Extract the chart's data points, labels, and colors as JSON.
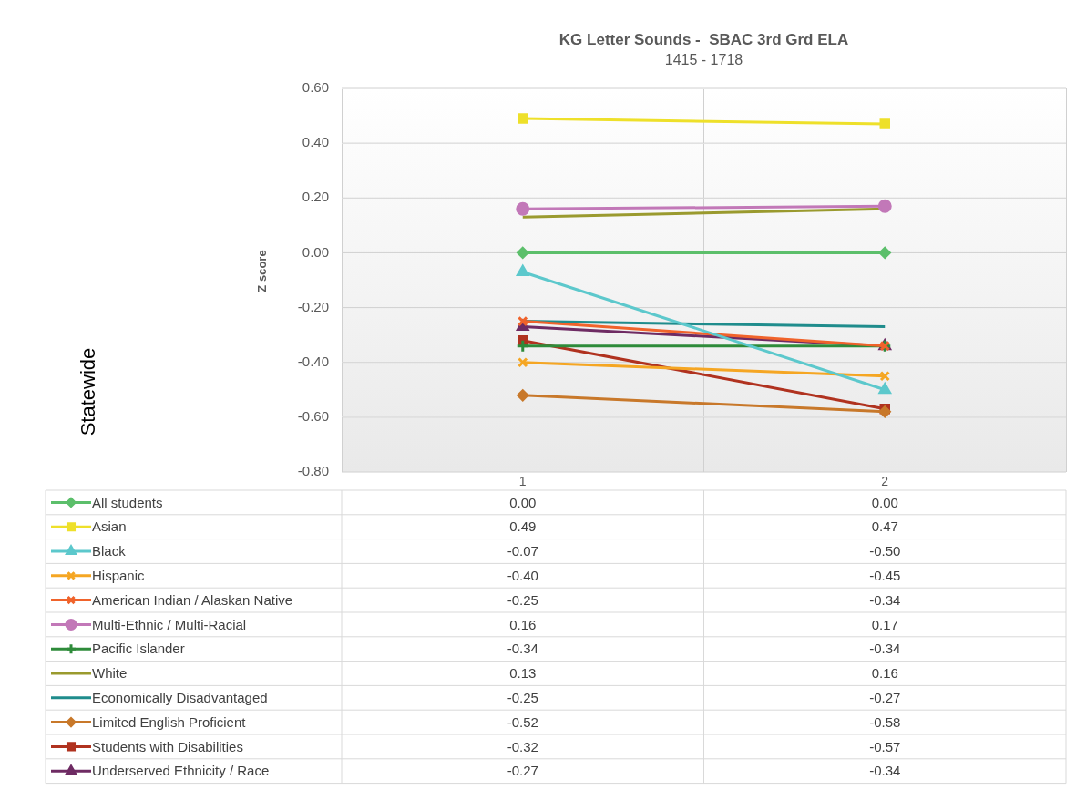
{
  "chart_data": {
    "type": "line",
    "title": "KG Letter Sounds -  SBAC 3rd Grd ELA",
    "subtitle": "1415 - 1718",
    "ylabel": "Z score",
    "annotations": [
      "Statewide"
    ],
    "categories": [
      "1",
      "2"
    ],
    "ylim": [
      -0.8,
      0.6
    ],
    "yticks": [
      {
        "value": -0.8,
        "label": "-0.80"
      },
      {
        "value": -0.6,
        "label": "-0.60"
      },
      {
        "value": -0.4,
        "label": "-0.40"
      },
      {
        "value": -0.2,
        "label": "-0.20"
      },
      {
        "value": 0,
        "label": "0.00"
      },
      {
        "value": 0.2,
        "label": "0.20"
      },
      {
        "value": 0.4,
        "label": "0.40"
      },
      {
        "value": 0.6,
        "label": "0.60"
      }
    ],
    "grid": true,
    "legend": "bottom",
    "series": [
      {
        "name": "All students",
        "color": "#5cbf6b",
        "marker": "diamond",
        "values": [
          0,
          0
        ],
        "value_labels": [
          "0.00",
          "0.00"
        ]
      },
      {
        "name": "Asian",
        "color": "#eee02a",
        "marker": "square",
        "values": [
          0.49,
          0.47
        ],
        "value_labels": [
          "0.49",
          "0.47"
        ]
      },
      {
        "name": "Black",
        "color": "#5cc8cc",
        "marker": "triangle",
        "values": [
          -0.07,
          -0.5
        ],
        "value_labels": [
          "-0.07",
          "-0.50"
        ]
      },
      {
        "name": "Hispanic",
        "color": "#f5a623",
        "marker": "cross",
        "values": [
          -0.4,
          -0.45
        ],
        "value_labels": [
          "-0.40",
          "-0.45"
        ]
      },
      {
        "name": "American Indian / Alaskan Native",
        "color": "#f0632b",
        "marker": "cross",
        "values": [
          -0.25,
          -0.34
        ],
        "value_labels": [
          "-0.25",
          "-0.34"
        ]
      },
      {
        "name": "Multi-Ethnic / Multi-Racial",
        "color": "#c278b8",
        "marker": "circle",
        "values": [
          0.16,
          0.17
        ],
        "value_labels": [
          "0.16",
          "0.17"
        ]
      },
      {
        "name": "Pacific Islander",
        "color": "#2e8b3a",
        "marker": "plus",
        "values": [
          -0.34,
          -0.34
        ],
        "value_labels": [
          "-0.34",
          "-0.34"
        ]
      },
      {
        "name": "White",
        "color": "#9a9a2e",
        "marker": "none",
        "values": [
          0.13,
          0.16
        ],
        "value_labels": [
          "0.13",
          "0.16"
        ]
      },
      {
        "name": "Economically Disadvantaged",
        "color": "#1f8c8c",
        "marker": "none",
        "values": [
          -0.25,
          -0.27
        ],
        "value_labels": [
          "-0.25",
          "-0.27"
        ]
      },
      {
        "name": "Limited English Proficient",
        "color": "#c8782a",
        "marker": "diamond",
        "values": [
          -0.52,
          -0.58
        ],
        "value_labels": [
          "-0.52",
          "-0.58"
        ]
      },
      {
        "name": "Students with Disabilities",
        "color": "#b0321f",
        "marker": "square",
        "values": [
          -0.32,
          -0.57
        ],
        "value_labels": [
          "-0.32",
          "-0.57"
        ]
      },
      {
        "name": "Underserved Ethnicity / Race",
        "color": "#6e2b63",
        "marker": "triangle",
        "values": [
          -0.27,
          -0.34
        ],
        "value_labels": [
          "-0.27",
          "-0.34"
        ]
      }
    ]
  }
}
